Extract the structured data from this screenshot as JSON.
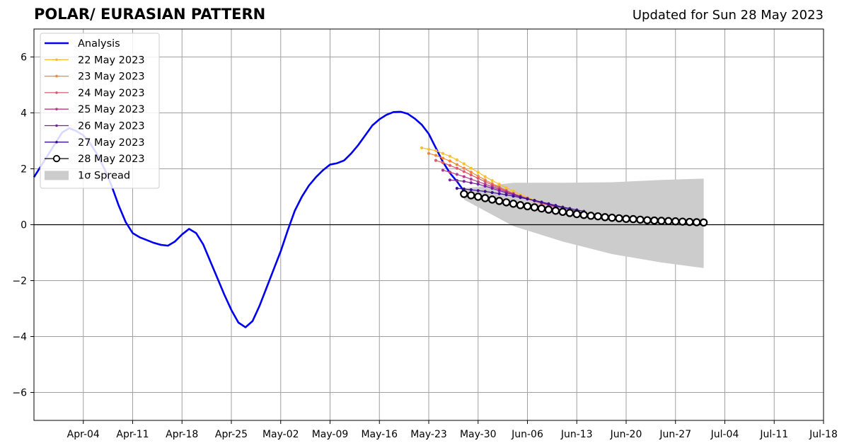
{
  "header": {
    "title": "POLAR/ EURASIAN  PATTERN",
    "updated": "Updated for Sun 28 May 2023"
  },
  "chart_data": {
    "type": "line",
    "title": "POLAR/ EURASIAN  PATTERN",
    "xlabel": "",
    "ylabel": "",
    "xlim": [
      "2023-03-28",
      "2023-07-18"
    ],
    "ylim": [
      -7,
      7
    ],
    "grid": true,
    "legend_position": "top-left",
    "x_ticks": [
      "2023-04-04",
      "2023-04-11",
      "2023-04-18",
      "2023-04-25",
      "2023-05-02",
      "2023-05-09",
      "2023-05-16",
      "2023-05-23",
      "2023-05-30",
      "2023-06-06",
      "2023-06-13",
      "2023-06-20",
      "2023-06-27",
      "2023-07-04",
      "2023-07-11",
      "2023-07-18"
    ],
    "x_tick_labels": [
      "Apr-04",
      "Apr-11",
      "Apr-18",
      "Apr-25",
      "May-02",
      "May-09",
      "May-16",
      "May-23",
      "May-30",
      "Jun-06",
      "Jun-13",
      "Jun-20",
      "Jun-27",
      "Jul-04",
      "Jul-11",
      "Jul-18"
    ],
    "y_ticks": [
      -6,
      -4,
      -2,
      0,
      2,
      4,
      6
    ],
    "y_tick_labels": [
      "−6",
      "−4",
      "−2",
      "0",
      "2",
      "4",
      "6"
    ],
    "series": [
      {
        "name": "Analysis",
        "color": "#0000ee",
        "kind": "analysis",
        "points": [
          [
            "2023-03-28",
            1.7
          ],
          [
            "2023-03-29",
            2.1
          ],
          [
            "2023-03-30",
            2.5
          ],
          [
            "2023-03-31",
            2.9
          ],
          [
            "2023-04-01",
            3.3
          ],
          [
            "2023-04-02",
            3.45
          ],
          [
            "2023-04-03",
            3.35
          ],
          [
            "2023-04-04",
            3.2
          ],
          [
            "2023-04-05",
            2.9
          ],
          [
            "2023-04-06",
            2.5
          ],
          [
            "2023-04-07",
            2.0
          ],
          [
            "2023-04-08",
            1.4
          ],
          [
            "2023-04-09",
            0.7
          ],
          [
            "2023-04-10",
            0.1
          ],
          [
            "2023-04-11",
            -0.3
          ],
          [
            "2023-04-12",
            -0.45
          ],
          [
            "2023-04-13",
            -0.55
          ],
          [
            "2023-04-14",
            -0.65
          ],
          [
            "2023-04-15",
            -0.72
          ],
          [
            "2023-04-16",
            -0.75
          ],
          [
            "2023-04-17",
            -0.6
          ],
          [
            "2023-04-18",
            -0.35
          ],
          [
            "2023-04-19",
            -0.15
          ],
          [
            "2023-04-20",
            -0.3
          ],
          [
            "2023-04-21",
            -0.7
          ],
          [
            "2023-04-22",
            -1.3
          ],
          [
            "2023-04-23",
            -1.9
          ],
          [
            "2023-04-24",
            -2.5
          ],
          [
            "2023-04-25",
            -3.05
          ],
          [
            "2023-04-26",
            -3.5
          ],
          [
            "2023-04-27",
            -3.67
          ],
          [
            "2023-04-28",
            -3.45
          ],
          [
            "2023-04-29",
            -2.9
          ],
          [
            "2023-04-30",
            -2.25
          ],
          [
            "2023-05-01",
            -1.6
          ],
          [
            "2023-05-02",
            -0.95
          ],
          [
            "2023-05-03",
            -0.2
          ],
          [
            "2023-05-04",
            0.5
          ],
          [
            "2023-05-05",
            1.0
          ],
          [
            "2023-05-06",
            1.4
          ],
          [
            "2023-05-07",
            1.7
          ],
          [
            "2023-05-08",
            1.95
          ],
          [
            "2023-05-09",
            2.15
          ],
          [
            "2023-05-10",
            2.2
          ],
          [
            "2023-05-11",
            2.3
          ],
          [
            "2023-05-12",
            2.55
          ],
          [
            "2023-05-13",
            2.85
          ],
          [
            "2023-05-14",
            3.2
          ],
          [
            "2023-05-15",
            3.55
          ],
          [
            "2023-05-16",
            3.77
          ],
          [
            "2023-05-17",
            3.93
          ],
          [
            "2023-05-18",
            4.03
          ],
          [
            "2023-05-19",
            4.04
          ],
          [
            "2023-05-20",
            3.97
          ],
          [
            "2023-05-21",
            3.8
          ],
          [
            "2023-05-22",
            3.58
          ],
          [
            "2023-05-23",
            3.25
          ],
          [
            "2023-05-24",
            2.75
          ],
          [
            "2023-05-25",
            2.25
          ],
          [
            "2023-05-26",
            1.85
          ],
          [
            "2023-05-27",
            1.55
          ],
          [
            "2023-05-28",
            1.2
          ]
        ]
      },
      {
        "name": "22 May 2023",
        "color": "#f5c02a",
        "kind": "forecast",
        "start": "2023-05-22",
        "values": [
          2.75,
          2.7,
          2.65,
          2.55,
          2.45,
          2.32,
          2.18,
          2.02,
          1.88,
          1.72,
          1.58,
          1.45,
          1.32,
          1.2,
          1.08,
          0.98,
          0.88,
          0.8,
          0.72,
          0.65
        ]
      },
      {
        "name": "23 May 2023",
        "color": "#f0853c",
        "kind": "forecast",
        "start": "2023-05-23",
        "values": [
          2.55,
          2.48,
          2.38,
          2.28,
          2.15,
          2.02,
          1.88,
          1.74,
          1.6,
          1.47,
          1.35,
          1.23,
          1.12,
          1.02,
          0.93,
          0.84,
          0.76,
          0.7,
          0.63
        ]
      },
      {
        "name": "24 May 2023",
        "color": "#dd5a6e",
        "kind": "forecast",
        "start": "2023-05-24",
        "values": [
          2.3,
          2.22,
          2.12,
          2.02,
          1.9,
          1.78,
          1.66,
          1.54,
          1.42,
          1.32,
          1.21,
          1.11,
          1.02,
          0.93,
          0.85,
          0.77,
          0.7,
          0.63
        ]
      },
      {
        "name": "25 May 2023",
        "color": "#b23b8c",
        "kind": "forecast",
        "start": "2023-05-25",
        "values": [
          1.95,
          1.88,
          1.8,
          1.72,
          1.63,
          1.54,
          1.45,
          1.36,
          1.27,
          1.18,
          1.1,
          1.02,
          0.94,
          0.86,
          0.79,
          0.72,
          0.65
        ]
      },
      {
        "name": "26 May 2023",
        "color": "#7a1fa2",
        "kind": "forecast",
        "start": "2023-05-26",
        "values": [
          1.6,
          1.58,
          1.55,
          1.5,
          1.45,
          1.38,
          1.3,
          1.22,
          1.14,
          1.07,
          1.0,
          0.93,
          0.86,
          0.79,
          0.72,
          0.66,
          0.6,
          0.54,
          0.48,
          0.43
        ]
      },
      {
        "name": "27 May 2023",
        "color": "#3b0f8c",
        "kind": "forecast",
        "start": "2023-05-27",
        "values": [
          1.3,
          1.28,
          1.25,
          1.22,
          1.19,
          1.15,
          1.11,
          1.07,
          1.02,
          0.97,
          0.92,
          0.87,
          0.81,
          0.75,
          0.69,
          0.63,
          0.58,
          0.53,
          0.48
        ]
      },
      {
        "name": "28 May 2023",
        "color": "#000000",
        "kind": "forecast-main",
        "start": "2023-05-28",
        "values": [
          1.1,
          1.05,
          1.0,
          0.95,
          0.9,
          0.85,
          0.8,
          0.75,
          0.7,
          0.66,
          0.62,
          0.58,
          0.54,
          0.5,
          0.46,
          0.42,
          0.38,
          0.35,
          0.32,
          0.3,
          0.27,
          0.25,
          0.23,
          0.21,
          0.2,
          0.18,
          0.16,
          0.15,
          0.14,
          0.13,
          0.12,
          0.11,
          0.1,
          0.09,
          0.08
        ]
      }
    ],
    "spread": {
      "name": "1σ Spread",
      "color": "#cccccc",
      "x": [
        "2023-05-28",
        "2023-06-04",
        "2023-06-11",
        "2023-06-18",
        "2023-06-25",
        "2023-07-01"
      ],
      "upper": [
        1.3,
        1.5,
        1.5,
        1.52,
        1.6,
        1.65
      ],
      "lower": [
        0.9,
        -0.05,
        -0.6,
        -1.05,
        -1.35,
        -1.55
      ]
    }
  }
}
